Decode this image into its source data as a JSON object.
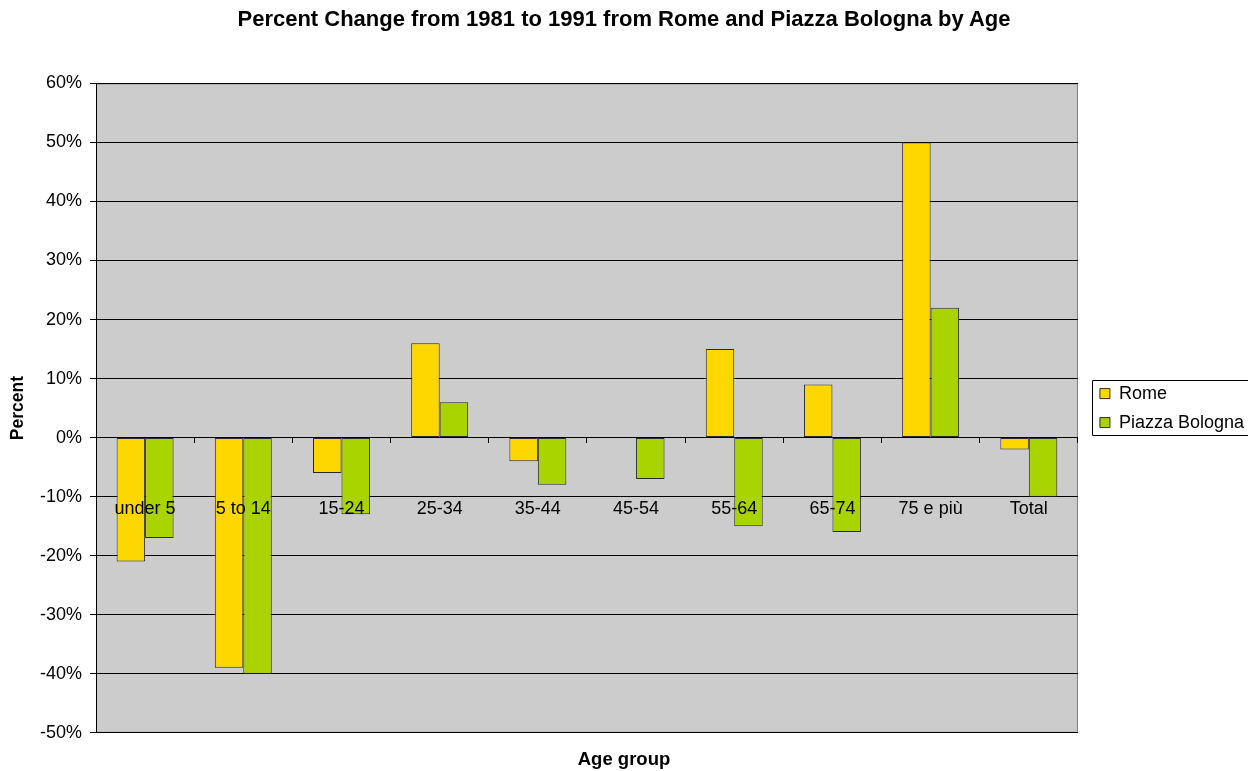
{
  "chart_data": {
    "type": "bar",
    "title": "Percent Change from 1981 to 1991 from Rome and Piazza Bologna by Age",
    "xlabel": "Age group",
    "ylabel": "Percent",
    "categories": [
      "under 5",
      "5 to 14",
      "15-24",
      "25-34",
      "35-44",
      "45-54",
      "55-64",
      "65-74",
      "75 e più",
      "Total"
    ],
    "series": [
      {
        "name": "Rome",
        "color": "#ffd700",
        "values": [
          -21,
          -39,
          -6,
          16,
          -4,
          null,
          15,
          9,
          50,
          -2
        ]
      },
      {
        "name": "Piazza Bologna",
        "color": "#aad400",
        "values": [
          -17,
          -40,
          -13,
          6,
          -8,
          -7,
          -15,
          -16,
          22,
          -10
        ]
      }
    ],
    "ylim": [
      -50,
      60
    ],
    "yticks": [
      {
        "value": -50,
        "label": "-50%"
      },
      {
        "value": -40,
        "label": "-40%"
      },
      {
        "value": -30,
        "label": "-30%"
      },
      {
        "value": -20,
        "label": "-20%"
      },
      {
        "value": -10,
        "label": "-10%"
      },
      {
        "value": 0,
        "label": "0%"
      },
      {
        "value": 10,
        "label": "10%"
      },
      {
        "value": 20,
        "label": "20%"
      },
      {
        "value": 30,
        "label": "30%"
      },
      {
        "value": 40,
        "label": "40%"
      },
      {
        "value": 50,
        "label": "50%"
      },
      {
        "value": 60,
        "label": "60%"
      }
    ],
    "grid": "y",
    "legend": "right"
  }
}
